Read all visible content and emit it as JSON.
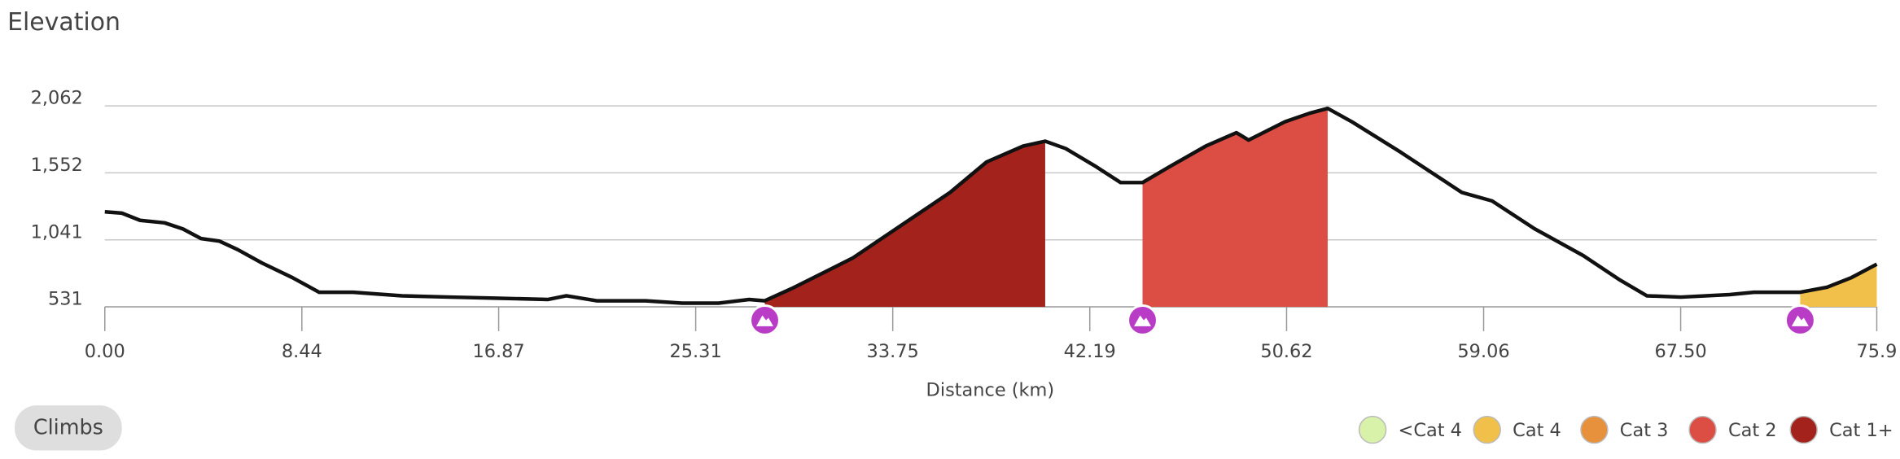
{
  "button": "Climbs",
  "chart_data": {
    "type": "area",
    "title": "Elevation",
    "x_label": "Distance (km)",
    "xlim": [
      0,
      75.9
    ],
    "ylim": [
      531,
      2062
    ],
    "xticks": [
      {
        "value": 0,
        "label": "0.00"
      },
      8.44,
      16.87,
      25.31,
      33.75,
      42.19,
      50.62,
      59.06,
      {
        "value": 67.5,
        "label": "67.50"
      },
      75.9
    ],
    "yticks": [
      531,
      {
        "value": 1041,
        "label": "1,041"
      },
      {
        "value": 1552,
        "label": "1,552"
      },
      {
        "value": 2062,
        "label": "2,062"
      }
    ],
    "grid": true,
    "line_color": "#111111",
    "x": [
      0,
      0.73,
      1.51,
      2.56,
      3.34,
      4.12,
      4.9,
      5.69,
      6.73,
      8.03,
      9.18,
      10.64,
      12.73,
      14.81,
      16.9,
      18.99,
      19.77,
      21.07,
      23.16,
      24.73,
      26.29,
      27.6,
      28.27,
      29.42,
      30.99,
      32.03,
      34.12,
      36.21,
      37.77,
      39.34,
      40.28,
      41.16,
      42.47,
      43.51,
      44.45,
      45.6,
      47.16,
      48.47,
      48.99,
      50.55,
      51.6,
      52.38,
      53.42,
      55.51,
      58.12,
      59.42,
      61.25,
      63.33,
      64.9,
      66.05,
      67.51,
      69.6,
      70.64,
      72.62,
      73.77,
      74.82,
      75.9
    ],
    "values": [
      1255,
      1245,
      1190,
      1171,
      1125,
      1051,
      1032,
      967,
      865,
      754,
      642,
      642,
      615,
      605,
      596,
      587,
      615,
      577,
      577,
      559,
      559,
      587,
      577,
      670,
      809,
      902,
      1153,
      1403,
      1635,
      1756,
      1793,
      1737,
      1598,
      1478,
      1478,
      1598,
      1756,
      1858,
      1802,
      1941,
      2006,
      2043,
      1941,
      1709,
      1403,
      1338,
      1125,
      921,
      735,
      615,
      605,
      624,
      642,
      642,
      680,
      754,
      856
    ],
    "climbs": [
      {
        "start": 28.27,
        "end": 40.28,
        "color": "#a3231c"
      },
      {
        "start": 44.45,
        "end": 52.38,
        "color": "#dc4e44"
      },
      {
        "start": 72.62,
        "end": 75.9,
        "color": "#f0c04a"
      }
    ],
    "marker_color": "#b93cc6",
    "legend": [
      {
        "name": "<Cat 4",
        "color": "#d9f2a9"
      },
      {
        "name": "Cat 4",
        "color": "#f0c04a"
      },
      {
        "name": "Cat 3",
        "color": "#e8913c"
      },
      {
        "name": "Cat 2",
        "color": "#dc4e44"
      },
      {
        "name": "Cat 1+",
        "color": "#a3231c"
      }
    ]
  }
}
